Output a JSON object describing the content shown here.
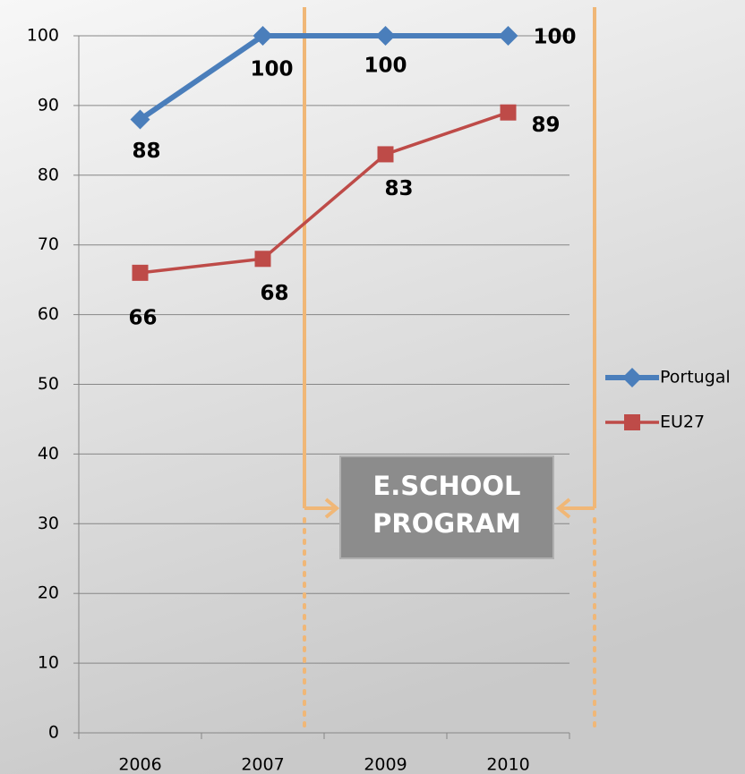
{
  "chart_data": {
    "type": "line",
    "categories": [
      "2006",
      "2007",
      "2009",
      "2010"
    ],
    "series": [
      {
        "name": "Portugal",
        "color": "#4a7ebb",
        "marker": "diamond",
        "values": [
          88,
          100,
          100,
          100
        ]
      },
      {
        "name": "EU27",
        "color": "#be4b48",
        "marker": "square",
        "values": [
          66,
          68,
          83,
          89
        ]
      }
    ],
    "ylim": [
      0,
      100
    ],
    "yticks": [
      0,
      10,
      20,
      30,
      40,
      50,
      60,
      70,
      80,
      90,
      100
    ],
    "grid": true,
    "legend": "right",
    "annotation": [
      "E.SCHOOL",
      "PROGRAM"
    ]
  }
}
